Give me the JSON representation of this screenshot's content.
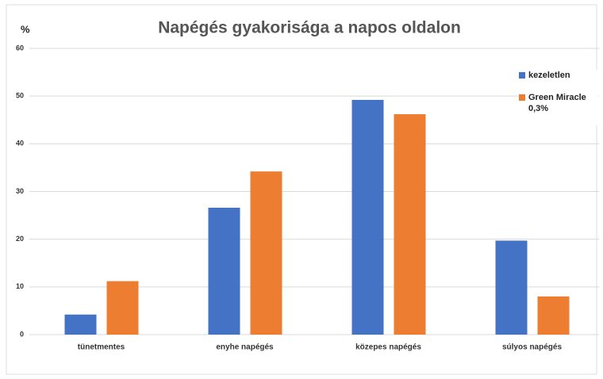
{
  "chart_data": {
    "type": "bar",
    "title": "Napégés gyakorisága a napos oldalon",
    "y_label": "%",
    "categories": [
      "tünetmentes",
      "enyhe napégés",
      "közepes napégés",
      "súlyos napégés"
    ],
    "series": [
      {
        "name": "kezeletlen",
        "color": "#4472c4",
        "values": [
          4.2,
          26.6,
          49.2,
          19.7
        ]
      },
      {
        "name": "Green Miracle 0,3%",
        "color": "#ed7d31",
        "values": [
          11.2,
          34.2,
          46.2,
          8.0
        ]
      }
    ],
    "ylim": [
      0,
      60
    ],
    "yticks": [
      0,
      10,
      20,
      30,
      40,
      50,
      60
    ],
    "grid": true,
    "legend": "right"
  }
}
